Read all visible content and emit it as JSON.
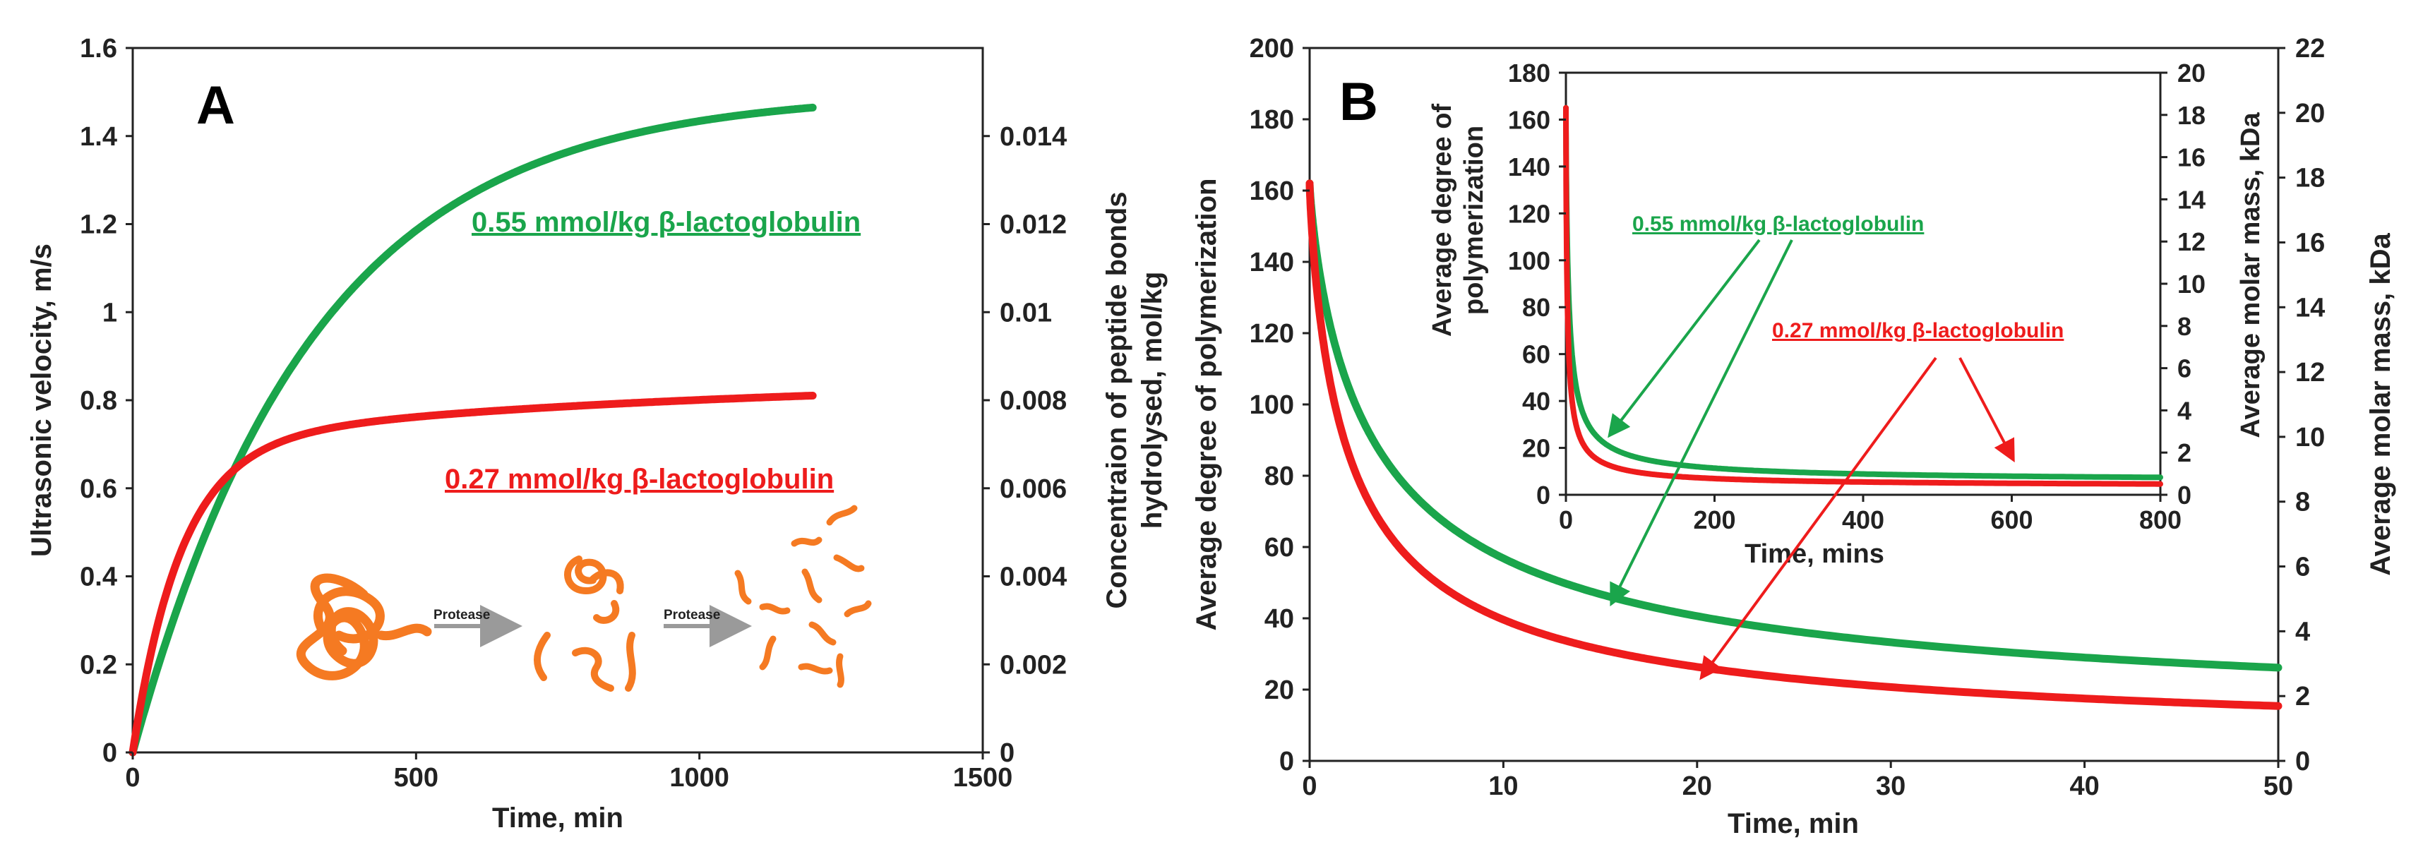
{
  "colors": {
    "green": "#1aa54b",
    "red": "#ee1c1c",
    "strand": "#f57a22",
    "arrow_gray": "#9a9a9a"
  },
  "panel_a": {
    "letter": "A",
    "illustration": {
      "step1_label": "Protease",
      "step2_label": "Protease"
    }
  },
  "panel_b": {
    "letter": "B"
  },
  "chart_data": [
    {
      "id": "panel_a",
      "type": "line",
      "xlabel": "Time, min",
      "ylabel": "Ultrasonic velocity, m/s",
      "y2label_line1": "Concentraion of peptide bonds",
      "y2label_line2": "hydrolysed, mol/kg",
      "xlim": [
        0,
        1500
      ],
      "ylim": [
        0,
        1.6
      ],
      "y2lim": [
        0,
        0.016
      ],
      "xticks": [
        "0",
        "500",
        "1000",
        "1500"
      ],
      "yticks": [
        "0",
        "0.2",
        "0.4",
        "0.6",
        "0.8",
        "1",
        "1.2",
        "1.4",
        "1.6"
      ],
      "y2ticks": [
        "0",
        "0.002",
        "0.004",
        "0.006",
        "0.008",
        "0.01",
        "0.012",
        "0.014"
      ],
      "series": [
        {
          "name": "0.55 mmol/kg β-lactoglobulin",
          "color": "#1aa54b",
          "model": "exp",
          "a": 1.5,
          "tau": 320,
          "x_end": 1200
        },
        {
          "name": "0.27 mmol/kg β-lactoglobulin",
          "color": "#ee1c1c",
          "model": "biexp",
          "a": 0.7,
          "tau": 85,
          "b": 0.15,
          "tau2": 900,
          "x_end": 1200
        }
      ],
      "sample_points": {
        "0.55 mmol/kg β-lactoglobulin": [
          [
            0,
            0
          ],
          [
            500,
            1.24
          ],
          [
            1000,
            1.42
          ],
          [
            1200,
            1.46
          ]
        ],
        "0.27 mmol/kg β-lactoglobulin": [
          [
            0,
            0
          ],
          [
            200,
            0.66
          ],
          [
            500,
            0.77
          ],
          [
            1200,
            0.82
          ]
        ]
      }
    },
    {
      "id": "panel_b_main",
      "type": "line",
      "xlabel": "Time, min",
      "ylabel": "Average degree of polymerization",
      "y2label": "Average molar mass, kDa",
      "xlim": [
        0,
        50
      ],
      "ylim": [
        0,
        200
      ],
      "y2lim": [
        0,
        22
      ],
      "xticks": [
        "0",
        "10",
        "20",
        "30",
        "40",
        "50"
      ],
      "yticks": [
        "0",
        "20",
        "40",
        "60",
        "80",
        "100",
        "120",
        "140",
        "160",
        "180",
        "200"
      ],
      "y2ticks": [
        "0",
        "2",
        "4",
        "6",
        "8",
        "10",
        "12",
        "14",
        "16",
        "18",
        "20",
        "22"
      ],
      "series": [
        {
          "name": "0.55 mmol/kg β-lactoglobulin",
          "color": "#1aa54b",
          "model": "decay",
          "p0": 162,
          "pinf": 10,
          "k": 0.34,
          "n": 0.82
        },
        {
          "name": "0.27 mmol/kg β-lactoglobulin",
          "color": "#ee1c1c",
          "model": "decay",
          "p0": 162,
          "pinf": 4,
          "k": 0.52,
          "n": 0.82
        }
      ],
      "sample_points": {
        "0.55 mmol/kg β-lactoglobulin": [
          [
            0,
            162
          ],
          [
            10,
            52
          ],
          [
            20,
            32
          ],
          [
            50,
            18
          ]
        ],
        "0.27 mmol/kg β-lactoglobulin": [
          [
            0,
            162
          ],
          [
            10,
            33
          ],
          [
            20,
            20
          ],
          [
            50,
            11
          ]
        ]
      }
    },
    {
      "id": "panel_b_inset",
      "type": "line",
      "xlabel": "Time, mins",
      "ylabel_line1": "Average degree of",
      "ylabel_line2": "polymerization",
      "y2label": "Average molar mass, kDa",
      "xlim": [
        0,
        800
      ],
      "ylim": [
        0,
        180
      ],
      "y2lim": [
        0,
        20
      ],
      "xticks": [
        "0",
        "200",
        "400",
        "600",
        "800"
      ],
      "yticks": [
        "0",
        "20",
        "40",
        "60",
        "80",
        "100",
        "120",
        "140",
        "160",
        "180"
      ],
      "y2ticks": [
        "0",
        "2",
        "4",
        "6",
        "8",
        "10",
        "12",
        "14",
        "16",
        "18",
        "20"
      ],
      "series": [
        {
          "name": "0.55 mmol/kg β-lactoglobulin",
          "color": "#1aa54b",
          "model": "decay",
          "p0": 165,
          "pinf": 5.5,
          "k": 0.34,
          "n": 0.82,
          "tscale": 1
        },
        {
          "name": "0.27 mmol/kg β-lactoglobulin",
          "color": "#ee1c1c",
          "model": "decay",
          "p0": 165,
          "pinf": 3.5,
          "k": 0.6,
          "n": 0.82,
          "tscale": 1
        }
      ],
      "sample_points": {
        "0.55 mmol/kg β-lactoglobulin": [
          [
            0,
            165
          ],
          [
            50,
            20
          ],
          [
            400,
            8
          ],
          [
            800,
            7
          ]
        ],
        "0.27 mmol/kg β-lactoglobulin": [
          [
            0,
            165
          ],
          [
            50,
            10
          ],
          [
            400,
            5
          ],
          [
            800,
            5
          ]
        ]
      }
    }
  ]
}
